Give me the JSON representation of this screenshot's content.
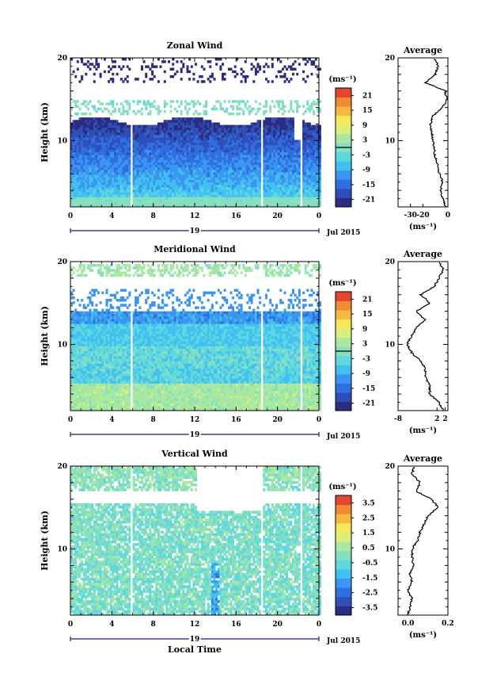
{
  "figure": {
    "date_label": "Jul 2015",
    "day_label": "19",
    "x_axis_label": "Local Time"
  },
  "chart_data": [
    {
      "type": "heatmap",
      "title": "Zonal Wind",
      "ylabel": "Height (km)",
      "xlabel": "",
      "x_ticks": [
        "0",
        "4",
        "8",
        "12",
        "16",
        "20",
        "0"
      ],
      "xlim": [
        0,
        24
      ],
      "y_ticks": [
        "10",
        "20"
      ],
      "ylim": [
        2,
        20
      ],
      "colorbar": {
        "unit": "(ms⁻¹)",
        "range": [
          -24,
          24
        ],
        "ticks": [
          "21",
          "15",
          "9",
          "3",
          "-3",
          "-9",
          "-15",
          "-21"
        ],
        "zero_line": 0
      },
      "gaps_hours": [
        [
          5.8,
          6.0
        ],
        [
          18.2,
          18.4
        ],
        [
          22.1,
          22.3
        ]
      ],
      "average_profile": {
        "title": "Average",
        "xlim": [
          -40,
          0
        ],
        "x_ticks": [
          "-30",
          "-20",
          "0"
        ],
        "unit": "(ms⁻¹)",
        "height": [
          2,
          3,
          4,
          5,
          6,
          7,
          8,
          9,
          10,
          11,
          12,
          13,
          14,
          15,
          16,
          17,
          18,
          19,
          20
        ],
        "values": [
          -2,
          -4,
          -6,
          -4,
          -7,
          -8,
          -10,
          -11,
          -12,
          -13,
          -14,
          -12,
          -4,
          -1,
          -2,
          -18,
          -10,
          -8,
          -11
        ]
      }
    },
    {
      "type": "heatmap",
      "title": "Meridional Wind",
      "ylabel": "Height (km)",
      "xlabel": "",
      "x_ticks": [
        "0",
        "4",
        "8",
        "12",
        "16",
        "20",
        "0"
      ],
      "xlim": [
        0,
        24
      ],
      "y_ticks": [
        "10",
        "20"
      ],
      "ylim": [
        2,
        20
      ],
      "colorbar": {
        "unit": "(ms⁻¹)",
        "range": [
          -24,
          24
        ],
        "ticks": [
          "21",
          "15",
          "9",
          "3",
          "-3",
          "-9",
          "-15",
          "-21"
        ],
        "zero_line": 0
      },
      "gaps_hours": [
        [
          5.8,
          6.0
        ],
        [
          18.2,
          18.4
        ],
        [
          22.1,
          22.3
        ]
      ],
      "average_profile": {
        "title": "Average",
        "xlim": [
          -8,
          3
        ],
        "x_ticks": [
          "-8",
          "2",
          "2"
        ],
        "unit": "(ms⁻¹)",
        "height": [
          2,
          3,
          4,
          5,
          6,
          7,
          8,
          9,
          10,
          11,
          12,
          13,
          14,
          15,
          16,
          17,
          18,
          19,
          20
        ],
        "values": [
          2,
          1,
          -1,
          -1,
          -2,
          -2,
          -3,
          -5,
          -6,
          -5,
          -4,
          -2,
          -4,
          -1,
          -3,
          0,
          1,
          2,
          1
        ]
      }
    },
    {
      "type": "heatmap",
      "title": "Vertical Wind",
      "ylabel": "Height (km)",
      "xlabel": "Local Time",
      "x_ticks": [
        "0",
        "4",
        "8",
        "12",
        "16",
        "20",
        "0"
      ],
      "xlim": [
        0,
        24
      ],
      "y_ticks": [
        "10",
        "20"
      ],
      "ylim": [
        2,
        20
      ],
      "colorbar": {
        "unit": "(ms⁻¹)",
        "range": [
          -4,
          4
        ],
        "ticks": [
          "3.5",
          "2.5",
          "1.5",
          "0.5",
          "-0.5",
          "-1.5",
          "-2.5",
          "-3.5"
        ],
        "zero_line": null
      },
      "gaps_hours": [
        [
          5.8,
          6.0
        ],
        [
          18.2,
          18.4
        ],
        [
          22.1,
          22.3
        ]
      ],
      "average_profile": {
        "title": "Average",
        "xlim": [
          -0.05,
          0.2
        ],
        "x_ticks": [
          "0.0",
          "0.2"
        ],
        "unit": "(ms⁻¹)",
        "height": [
          2,
          3,
          4,
          5,
          6,
          7,
          8,
          9,
          10,
          11,
          12,
          13,
          14,
          15,
          16,
          17,
          18,
          19,
          20
        ],
        "values": [
          0.0,
          0.01,
          0.02,
          0.0,
          0.02,
          0.01,
          0.03,
          0.02,
          0.02,
          0.05,
          0.06,
          0.08,
          0.1,
          0.15,
          0.12,
          0.04,
          0.06,
          0.02,
          0.03
        ]
      }
    }
  ]
}
